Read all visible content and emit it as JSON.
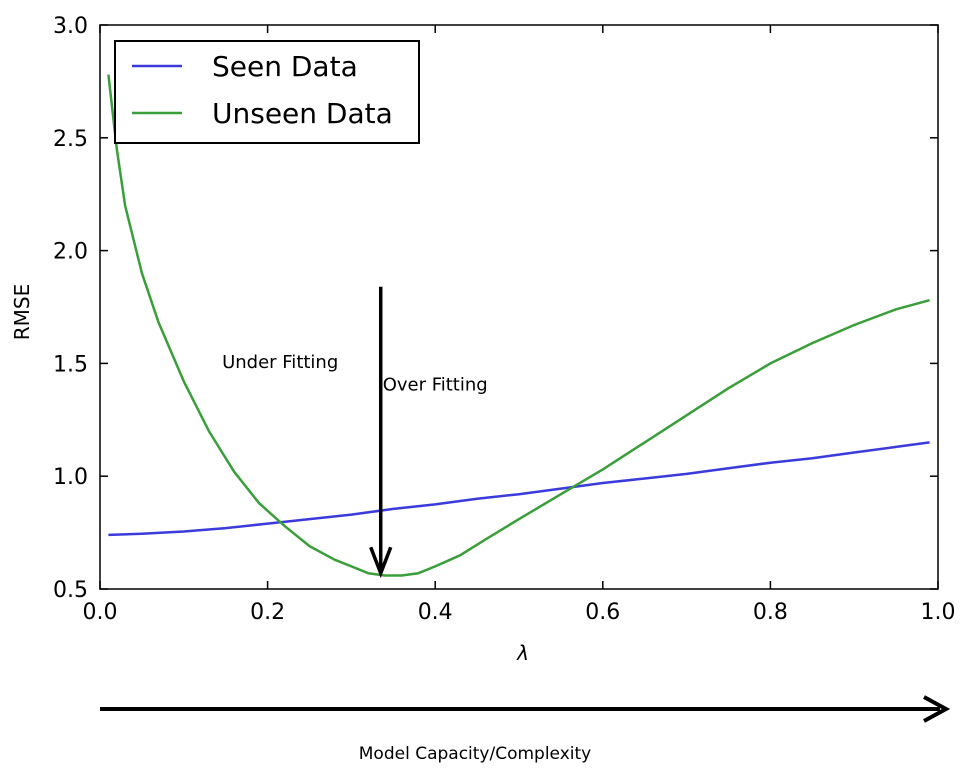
{
  "chart_data": {
    "type": "line",
    "title": "",
    "xlabel": "λ",
    "ylabel": "RMSE",
    "xlim": [
      0.0,
      1.0
    ],
    "ylim": [
      0.5,
      3.0
    ],
    "xticks": [
      "0.0",
      "0.2",
      "0.4",
      "0.6",
      "0.8",
      "1.0"
    ],
    "yticks": [
      "0.5",
      "1.0",
      "1.5",
      "2.0",
      "2.5",
      "3.0"
    ],
    "grid": false,
    "legend_position": "top-left",
    "series": [
      {
        "name": "Seen Data",
        "color": "#3b3bdc",
        "x": [
          0.01,
          0.05,
          0.1,
          0.15,
          0.2,
          0.25,
          0.3,
          0.35,
          0.4,
          0.45,
          0.5,
          0.55,
          0.6,
          0.65,
          0.7,
          0.75,
          0.8,
          0.85,
          0.9,
          0.95,
          0.99
        ],
        "y": [
          0.74,
          0.745,
          0.755,
          0.77,
          0.79,
          0.81,
          0.83,
          0.855,
          0.875,
          0.9,
          0.92,
          0.945,
          0.97,
          0.99,
          1.01,
          1.035,
          1.06,
          1.08,
          1.105,
          1.13,
          1.15
        ]
      },
      {
        "name": "Unseen Data",
        "color": "#3a9e3a",
        "x": [
          0.01,
          0.02,
          0.03,
          0.05,
          0.07,
          0.1,
          0.13,
          0.16,
          0.19,
          0.22,
          0.25,
          0.28,
          0.3,
          0.32,
          0.34,
          0.36,
          0.38,
          0.4,
          0.43,
          0.46,
          0.5,
          0.55,
          0.6,
          0.65,
          0.7,
          0.75,
          0.8,
          0.85,
          0.9,
          0.95,
          0.99
        ],
        "y": [
          2.78,
          2.45,
          2.2,
          1.9,
          1.68,
          1.42,
          1.2,
          1.02,
          0.88,
          0.78,
          0.69,
          0.63,
          0.6,
          0.57,
          0.56,
          0.56,
          0.57,
          0.6,
          0.65,
          0.72,
          0.81,
          0.92,
          1.03,
          1.15,
          1.27,
          1.39,
          1.5,
          1.59,
          1.67,
          1.74,
          1.78
        ]
      }
    ],
    "annotations": [
      {
        "text": "Under Fitting",
        "x": 0.215,
        "y": 1.48
      },
      {
        "text": "Over Fitting",
        "x": 0.4,
        "y": 1.38
      }
    ],
    "arrow": {
      "x": 0.335,
      "y_start": 1.84,
      "y_end": 0.57
    },
    "capacity_label": "Model Capacity/Complexity"
  }
}
